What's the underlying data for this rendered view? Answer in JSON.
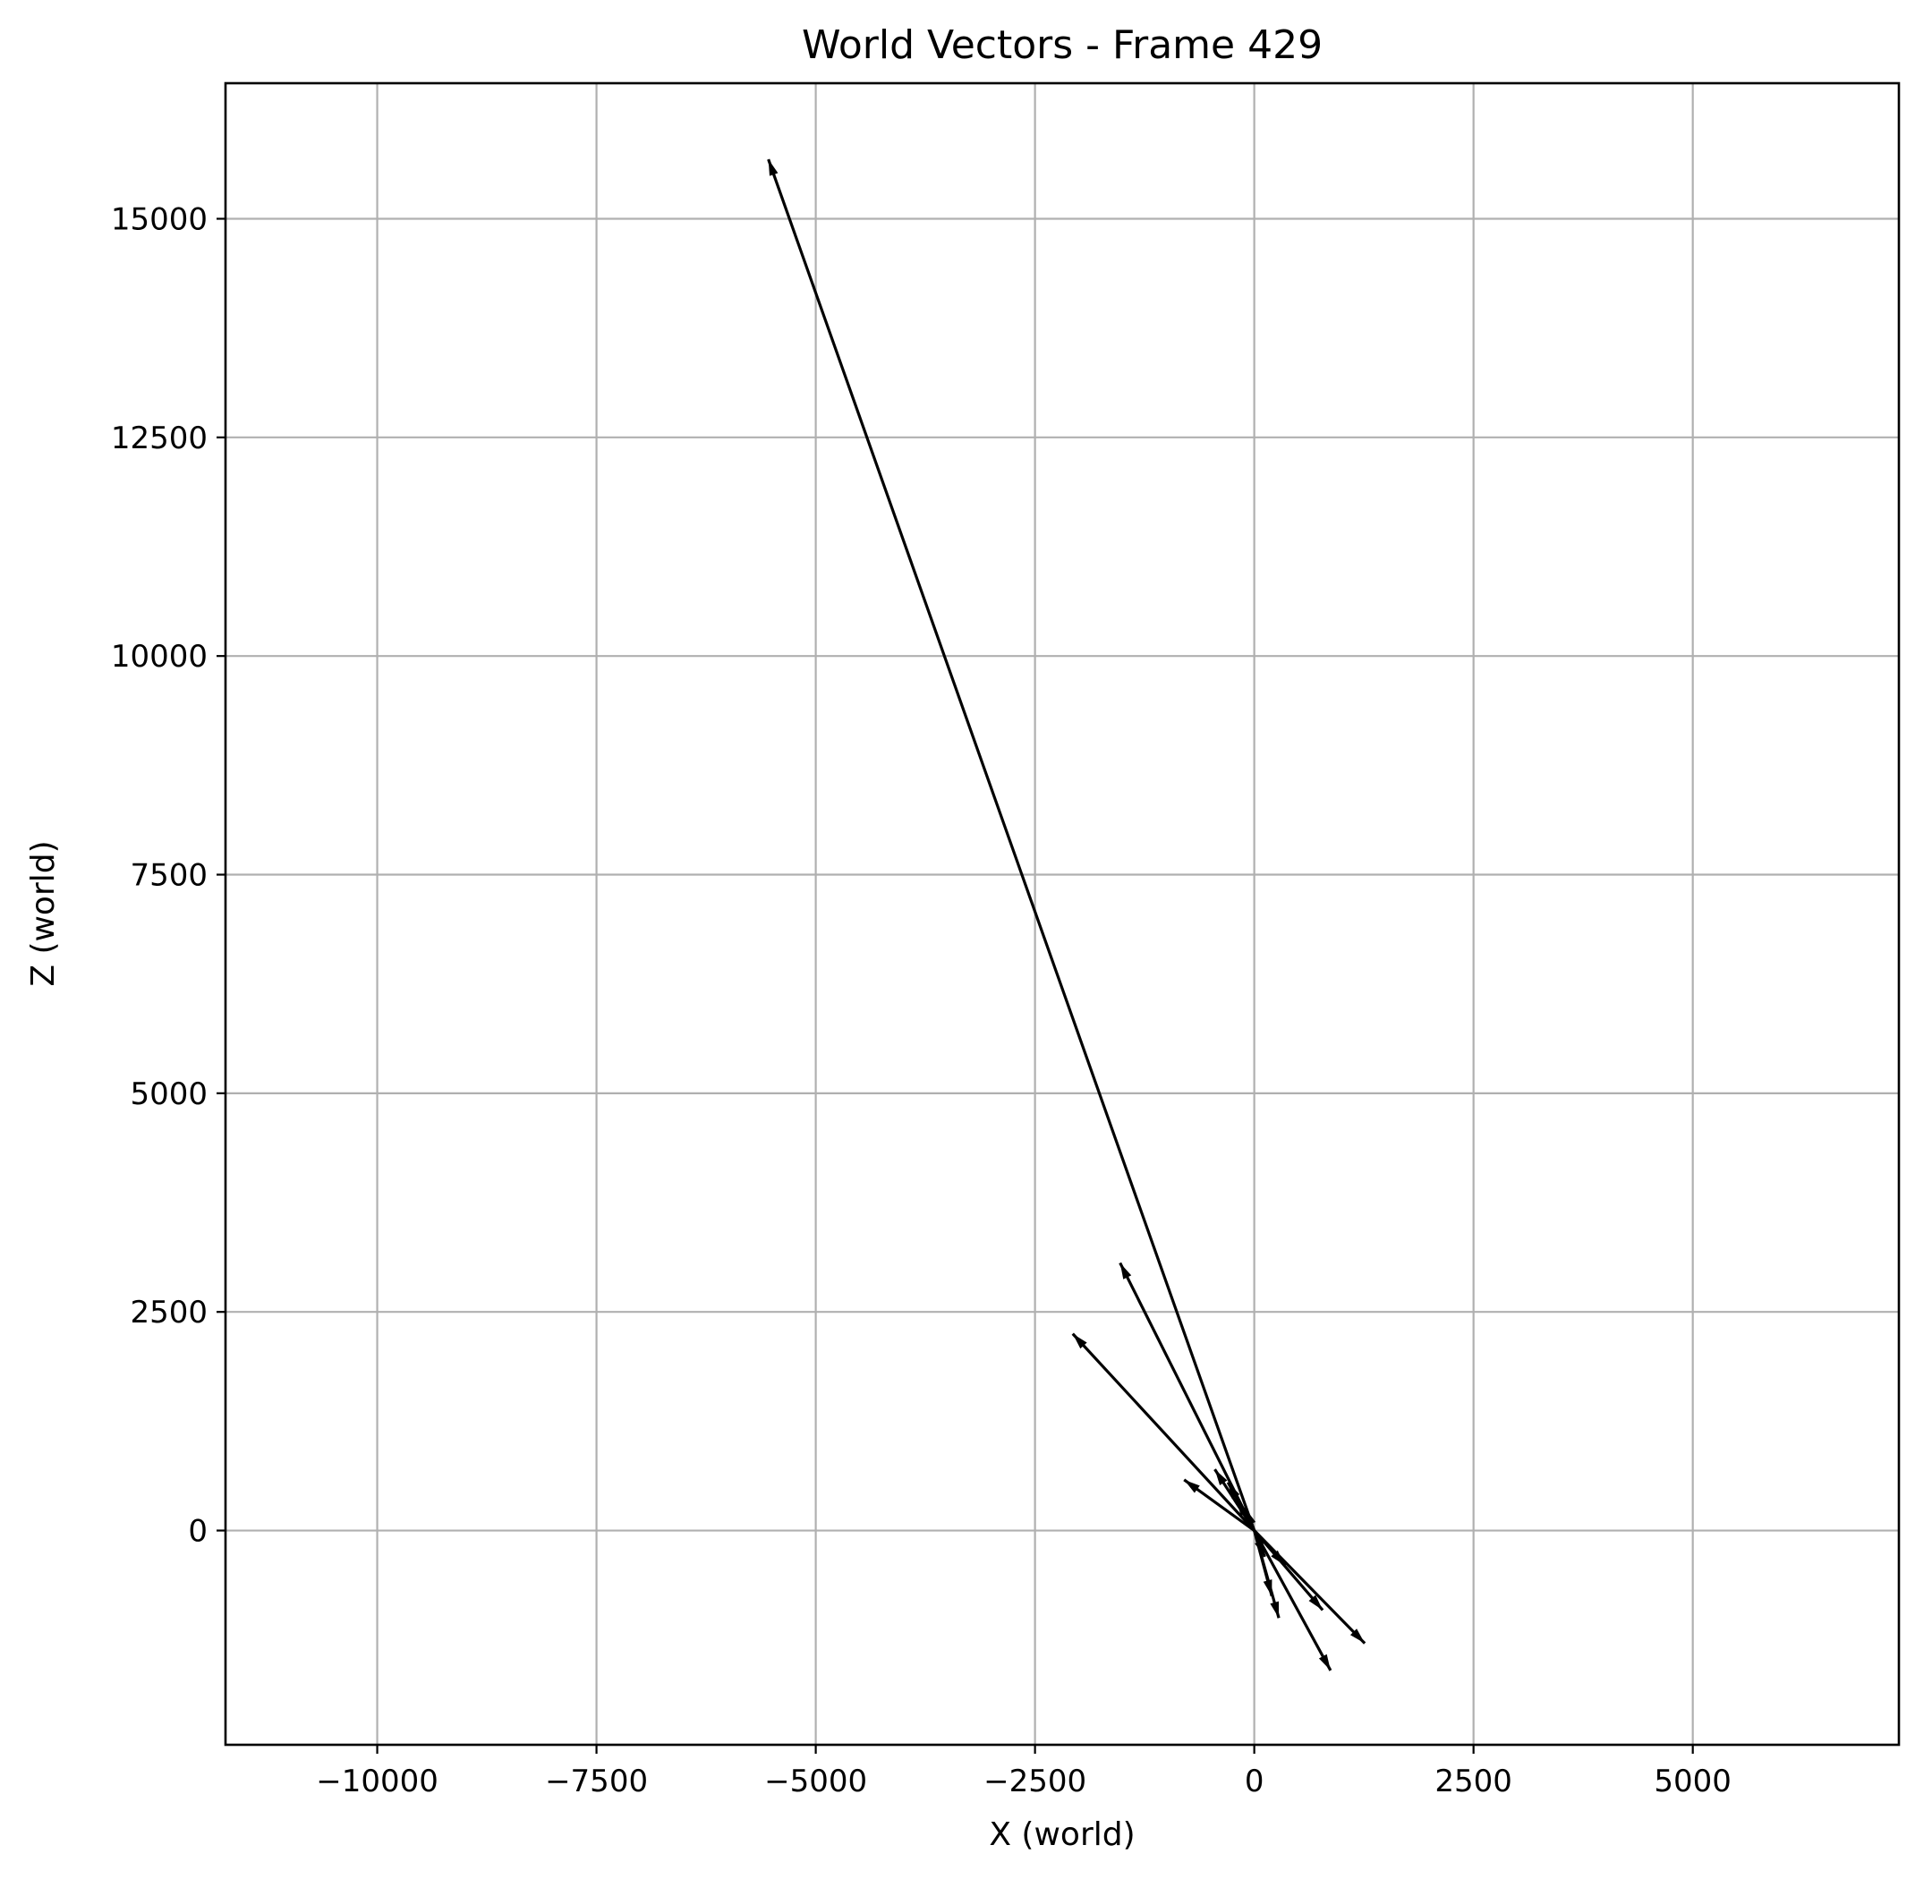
{
  "chart_data": {
    "type": "quiver",
    "title": "World Vectors - Frame 429",
    "xlabel": "X (world)",
    "ylabel": "Z (world)",
    "xlim": [
      -11730,
      7350
    ],
    "ylim": [
      -2450,
      16550
    ],
    "xticks": [
      -10000,
      -7500,
      -5000,
      -2500,
      0,
      2500,
      5000
    ],
    "xtick_labels": [
      "−10000",
      "−7500",
      "−5000",
      "−2500",
      "0",
      "2500",
      "5000"
    ],
    "yticks": [
      0,
      2500,
      5000,
      7500,
      10000,
      12500,
      15000
    ],
    "ytick_labels": [
      "0",
      "2500",
      "5000",
      "7500",
      "10000",
      "12500",
      "15000"
    ],
    "grid": true,
    "color": "#000000",
    "vectors": [
      {
        "x": -5540,
        "z": 15680
      },
      {
        "x": -1530,
        "z": 3060
      },
      {
        "x": -2070,
        "z": 2250
      },
      {
        "x": -800,
        "z": 580
      },
      {
        "x": -450,
        "z": 700
      },
      {
        "x": -300,
        "z": 550
      },
      {
        "x": -200,
        "z": 350
      },
      {
        "x": -100,
        "z": 250
      },
      {
        "x": 1260,
        "z": -1290
      },
      {
        "x": 870,
        "z": -1600
      },
      {
        "x": 780,
        "z": -910
      },
      {
        "x": 280,
        "z": -1000
      },
      {
        "x": 200,
        "z": -750
      },
      {
        "x": 350,
        "z": -400
      },
      {
        "x": 120,
        "z": -300
      }
    ]
  }
}
